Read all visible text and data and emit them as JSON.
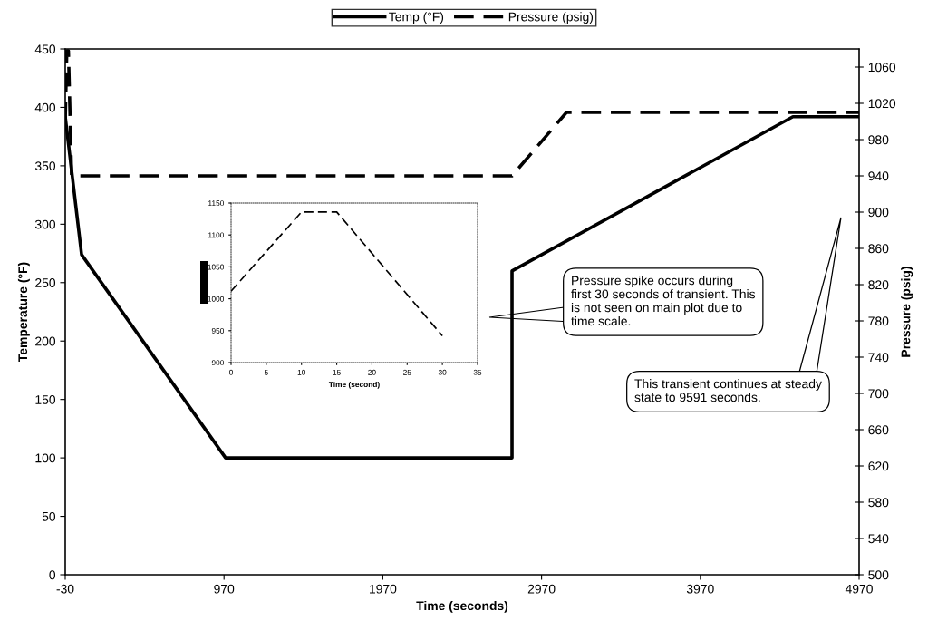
{
  "chart_data": [
    {
      "type": "line",
      "xlabel": "Time (seconds)",
      "ylabel": "Temperature (°F)",
      "y2label": "Pressure (psig)",
      "xlim": [
        -30,
        4970
      ],
      "xticks": [
        -30,
        970,
        1970,
        2970,
        3970,
        4970
      ],
      "ylim": [
        0,
        450
      ],
      "yticks": [
        0,
        50,
        100,
        150,
        200,
        250,
        300,
        350,
        400,
        450
      ],
      "y2lim": [
        500,
        1080
      ],
      "y2ticks": [
        500,
        540,
        580,
        620,
        660,
        700,
        740,
        780,
        820,
        860,
        900,
        940,
        980,
        1020,
        1060
      ],
      "legend": "top",
      "grid": false,
      "marker": "none",
      "series": [
        {
          "name": "Temp (°F)",
          "color": "#000000",
          "line_style": "solid",
          "x": [
            -30,
            73,
            980,
            2784,
            2784,
            4553,
            4970
          ],
          "values": [
            392,
            274,
            100,
            100,
            260,
            392,
            392
          ]
        },
        {
          "name": "Pressure (psig)",
          "color": "#000000",
          "line_style": "dashed",
          "axis": "y2",
          "x": [
            -30,
            -20,
            -10,
            10,
            2784,
            3127,
            4970
          ],
          "values": [
            1000,
            1078,
            1078,
            940,
            940,
            1010,
            1010
          ]
        }
      ],
      "annotations": [
        "Pressure spike occurs during first 30 seconds of transient. This is not seen on main plot due to time scale.",
        "This transient continues at steady state to 9591 seconds."
      ]
    },
    {
      "type": "line",
      "xlabel": "Time (second)",
      "xlim": [
        0,
        35
      ],
      "xticks": [
        0,
        5,
        10,
        15,
        20,
        25,
        30,
        35
      ],
      "ylim": [
        900,
        1150
      ],
      "yticks": [
        900,
        950,
        1000,
        1050,
        1100,
        1150
      ],
      "grid": false,
      "marker": "none",
      "series": [
        {
          "color": "#000000",
          "line_style": "dashed",
          "x": [
            0,
            10,
            15,
            30
          ],
          "values": [
            1012,
            1136,
            1136,
            942
          ]
        }
      ]
    }
  ]
}
